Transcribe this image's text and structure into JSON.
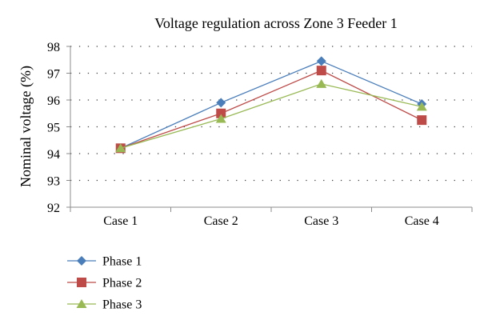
{
  "chart_data": {
    "type": "line",
    "title": "Voltage regulation across Zone 3 Feeder 1",
    "xlabel": "",
    "ylabel": "Nominal voltage (%)",
    "categories": [
      "Case 1",
      "Case 2",
      "Case 3",
      "Case 4"
    ],
    "ylim": [
      92,
      98
    ],
    "yticks": [
      "92",
      "93",
      "94",
      "95",
      "96",
      "97",
      "98"
    ],
    "grid": "horizontal dotted",
    "legend_position": "bottom-left",
    "series": [
      {
        "name": "Phase 1",
        "values": [
          94.2,
          95.9,
          97.45,
          95.85
        ],
        "color": "#4a7ebb",
        "marker": "diamond"
      },
      {
        "name": "Phase 2",
        "values": [
          94.2,
          95.5,
          97.1,
          95.25
        ],
        "color": "#be4b48",
        "marker": "square"
      },
      {
        "name": "Phase 3",
        "values": [
          94.2,
          95.3,
          96.6,
          95.75
        ],
        "color": "#98b954",
        "marker": "triangle"
      }
    ]
  }
}
